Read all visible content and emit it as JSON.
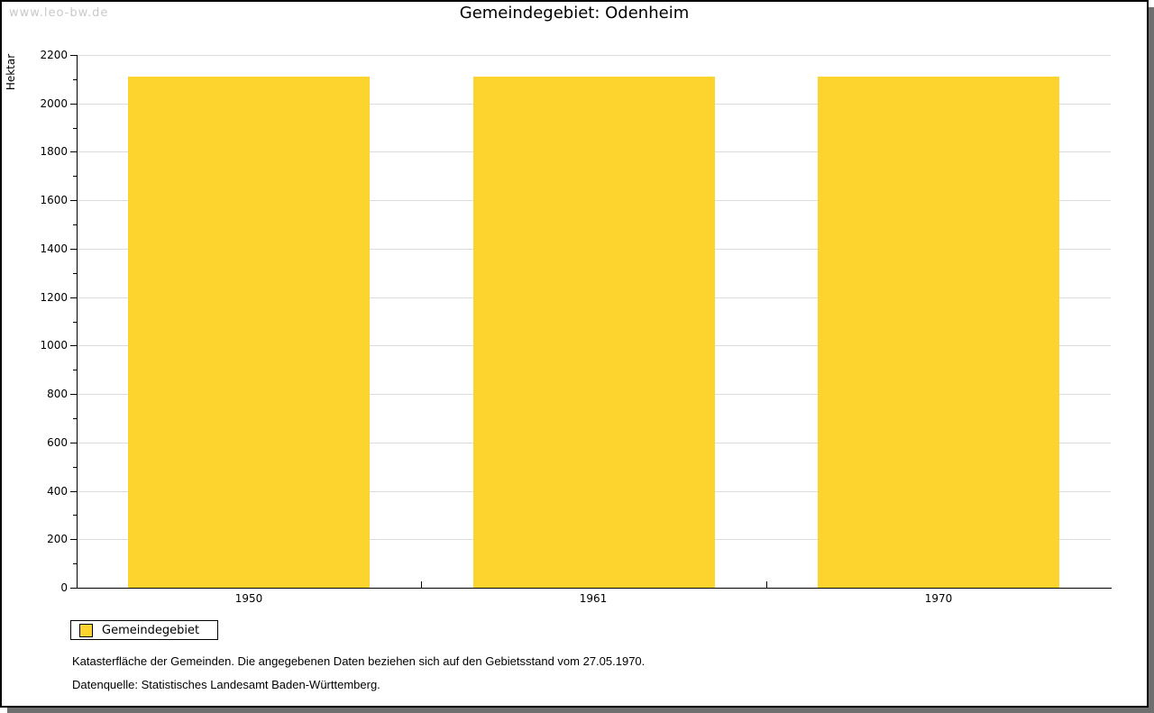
{
  "watermark": "www.leo-bw.de",
  "title": "Gemeindegebiet: Odenheim",
  "chart_data": {
    "type": "bar",
    "title": "Gemeindegebiet: Odenheim",
    "categories": [
      "1950",
      "1961",
      "1970"
    ],
    "series": [
      {
        "name": "Gemeindegebiet",
        "values": [
          2110,
          2110,
          2110
        ]
      }
    ],
    "xlabel": "",
    "ylabel": "Hektar",
    "ylim": [
      0,
      2200
    ],
    "ytick_step": 200,
    "ytick_minor_step": 100,
    "grid": true,
    "legend_position": "bottom-left",
    "bar_color": "#fcd42d"
  },
  "legend": {
    "items": [
      {
        "label": "Gemeindegebiet",
        "color": "#fcd42d"
      }
    ]
  },
  "footnotes": [
    "Katasterfläche der Gemeinden. Die angegebenen Daten beziehen sich auf den Gebietsstand vom 27.05.1970.",
    "Datenquelle: Statistisches Landesamt Baden-Württemberg."
  ],
  "colors": {
    "bar": "#fcd42d",
    "gridline": "#dcdcdc",
    "axis": "#000000",
    "watermark": "#c9c9c9",
    "frame_border": "#000000",
    "frame_shadow": "#6f6f6f",
    "background": "#ffffff"
  }
}
